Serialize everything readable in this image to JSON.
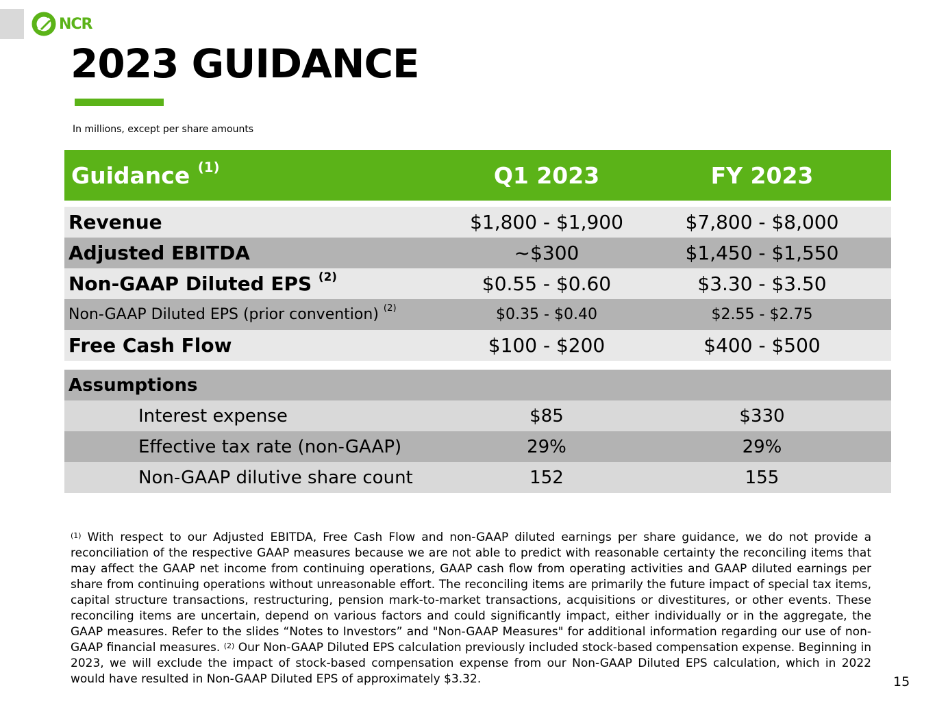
{
  "brand": {
    "logo_text": "NCR",
    "accent": "#5bb318"
  },
  "title": "2023 GUIDANCE",
  "subtitle": "In millions, except per share amounts",
  "table": {
    "header": {
      "label": "Guidance",
      "note": "(1)",
      "q1": "Q1 2023",
      "fy": "FY 2023"
    },
    "rows": [
      {
        "label": "Revenue",
        "note": "",
        "q1": "$1,800 - $1,900",
        "fy": "$7,800 - $8,000"
      },
      {
        "label": "Adjusted EBITDA",
        "note": "",
        "q1": "~$300",
        "fy": "$1,450 - $1,550"
      },
      {
        "label": "Non-GAAP Diluted EPS",
        "note": "(2)",
        "q1": "$0.55 - $0.60",
        "fy": "$3.30 - $3.50"
      },
      {
        "label": "Non-GAAP Diluted EPS (prior convention)",
        "note": "(2)",
        "q1": "$0.35 - $0.40",
        "fy": "$2.55 - $2.75"
      },
      {
        "label": "Free Cash Flow",
        "note": "",
        "q1": "$100 - $200",
        "fy": "$400 - $500"
      }
    ],
    "assumptions_label": "Assumptions",
    "assumptions": [
      {
        "label": "Interest expense",
        "q1": "$85",
        "fy": "$330"
      },
      {
        "label": "Effective tax rate (non-GAAP)",
        "q1": "29%",
        "fy": "29%"
      },
      {
        "label": "Non-GAAP dilutive share count",
        "q1": "152",
        "fy": "155"
      }
    ]
  },
  "footnote": {
    "mark1": "(1)",
    "text1": " With respect to our Adjusted EBITDA, Free Cash Flow and non-GAAP diluted earnings per share guidance, we do not provide a reconciliation of the respective GAAP measures because we are not able to predict with reasonable certainty the reconciling items that may affect the GAAP net income from continuing operations, GAAP cash flow from operating activities and GAAP diluted earnings per share from continuing operations without unreasonable effort. The reconciling items are primarily the future impact of special tax items, capital structure transactions, restructuring, pension mark-to-market transactions, acquisitions or divestitures, or other events. These reconciling items are uncertain, depend on various factors and could significantly impact, either individually or in the aggregate, the GAAP measures. Refer to the slides “Notes to Investors” and \"Non-GAAP Measures\" for additional information regarding our use of non-GAAP financial measures. ",
    "mark2": "(2)",
    "text2": " Our Non-GAAP Diluted EPS calculation previously included stock-based compensation expense. Beginning in 2023, we will exclude the impact of stock-based compensation expense from our Non-GAAP Diluted EPS calculation, which in 2022 would have resulted in Non-GAAP Diluted EPS of approximately $3.32."
  },
  "page_number": "15"
}
